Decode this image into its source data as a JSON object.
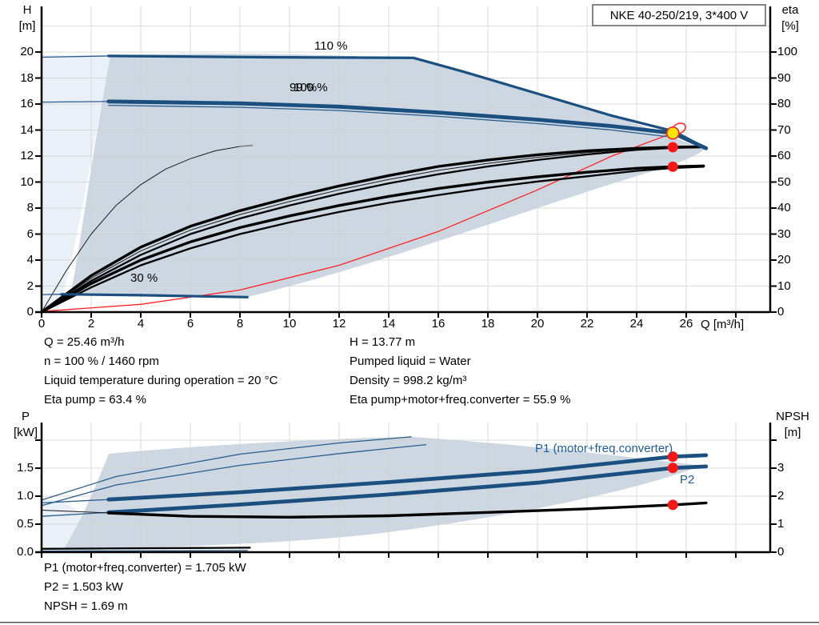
{
  "title_box": "NKE 40-250/219, 3*400 V",
  "top_chart": {
    "h_title_line1": "H",
    "h_title_line2": "[m]",
    "eta_title_line1": "eta",
    "eta_title_line2": "[%]",
    "q_axis_title": "Q [m³/h]",
    "label_110": "110 %",
    "label_100": "100 %",
    "label_99": "99 %",
    "label_30": "30 %",
    "h_ticks": [
      "20",
      "18",
      "16",
      "14",
      "12",
      "10",
      "8",
      "6",
      "4",
      "2",
      "0"
    ],
    "eta_ticks": [
      "100",
      "90",
      "80",
      "70",
      "60",
      "50",
      "40",
      "30",
      "20",
      "10",
      "0"
    ],
    "q_ticks": [
      "0",
      "2",
      "4",
      "6",
      "8",
      "10",
      "12",
      "14",
      "16",
      "18",
      "20",
      "22",
      "24",
      "26"
    ]
  },
  "bottom_chart": {
    "p_title_line1": "P",
    "p_title_line2": "[kW]",
    "npsh_title_line1": "NPSH",
    "npsh_title_line2": "[m]",
    "label_p1": "P1 (motor+freq.converter)",
    "label_p2": "P2",
    "p_ticks": [
      "1.5",
      "1.0",
      "0.5",
      "0.0"
    ],
    "npsh_ticks": [
      "3",
      "2",
      "1",
      "0"
    ]
  },
  "info_panel": {
    "left": [
      "Q = 25.46 m³/h",
      "n = 100 % / 1460 rpm",
      "Liquid temperature during operation = 20 °C",
      "Eta pump = 63.4 %"
    ],
    "right": [
      "H = 13.77 m",
      "Pumped liquid = Water",
      "Density = 998.2 kg/m³",
      "Eta pump+motor+freq.converter = 55.9 %"
    ]
  },
  "footer_panel": [
    "P1 (motor+freq.converter) = 1.705 kW",
    "P2 = 1.503 kW",
    "NPSH = 1.69 m"
  ],
  "colors": {
    "curve_blue": "#1a4f80",
    "label_blue": "#1d5c9e",
    "marker_red": "#ff1515",
    "duty_yellow": "#ffe400",
    "region_light": "#e9f0f7",
    "region_gray": "#ccd7e2"
  },
  "chart_data": {
    "top": {
      "type": "line",
      "title": "NKE 40-250/219, 3*400 V",
      "x_label": "Q [m³/h]",
      "y_left_label": "H [m]",
      "y_right_label": "eta [%]",
      "x_range": [
        0,
        29.4
      ],
      "y_left_range": [
        0,
        24
      ],
      "y_right_range": [
        0,
        120
      ],
      "grid": true,
      "series": {
        "h110_thin": {
          "axis": "H",
          "points": [
            [
              0,
              19.6
            ],
            [
              2.7,
              19.7
            ]
          ]
        },
        "h110": {
          "axis": "H",
          "points": [
            [
              2.7,
              19.7
            ],
            [
              9,
              19.6
            ],
            [
              15,
              19.55
            ],
            [
              17,
              18.5
            ],
            [
              20,
              16.8
            ],
            [
              23,
              15.1
            ],
            [
              25.5,
              13.9
            ],
            [
              26.8,
              12.6
            ]
          ]
        },
        "h100_thin": {
          "axis": "H",
          "points": [
            [
              0,
              16.15
            ],
            [
              2.7,
              16.2
            ]
          ]
        },
        "h100": {
          "axis": "H",
          "points": [
            [
              2.7,
              16.2
            ],
            [
              8,
              16.05
            ],
            [
              12,
              15.8
            ],
            [
              16,
              15.35
            ],
            [
              20,
              14.8
            ],
            [
              23,
              14.3
            ],
            [
              25.46,
              13.77
            ],
            [
              26.8,
              12.6
            ]
          ]
        },
        "h99_thin": {
          "axis": "H",
          "points": [
            [
              2.7,
              15.9
            ],
            [
              8,
              15.75
            ],
            [
              12,
              15.5
            ],
            [
              16,
              15.05
            ],
            [
              20,
              14.5
            ],
            [
              23,
              14.0
            ],
            [
              25.2,
              13.5
            ]
          ]
        },
        "h30_thin": {
          "axis": "H",
          "points": [
            [
              0,
              1.35
            ],
            [
              0.8,
              1.37
            ]
          ]
        },
        "h30": {
          "axis": "H",
          "points": [
            [
              0.8,
              1.37
            ],
            [
              4,
              1.3
            ],
            [
              8.3,
              1.15
            ]
          ]
        },
        "eta_110_thin": {
          "axis": "eta",
          "points": [
            [
              0,
              0
            ],
            [
              1,
              16
            ],
            [
              2,
              30
            ],
            [
              3,
              41
            ],
            [
              4,
              49
            ],
            [
              5,
              55
            ],
            [
              6,
              59
            ],
            [
              7,
              62
            ],
            [
              8,
              63.7
            ]
          ]
        },
        "eta_110_end": {
          "axis": "eta",
          "points": [
            [
              8,
              63.7
            ],
            [
              8.5,
              64.1
            ]
          ]
        },
        "eta_pump": {
          "axis": "eta",
          "points": [
            [
              0,
              0
            ],
            [
              2,
              14
            ],
            [
              4,
              25
            ],
            [
              6,
              33
            ],
            [
              8,
              39
            ],
            [
              10,
              44
            ],
            [
              12,
              48.5
            ],
            [
              14,
              52.5
            ],
            [
              16,
              56
            ],
            [
              18,
              58.5
            ],
            [
              20,
              60.5
            ],
            [
              22,
              62
            ],
            [
              24,
              63
            ],
            [
              25.46,
              63.4
            ],
            [
              26.7,
              63.6
            ]
          ]
        },
        "eta_pump_thin": {
          "axis": "eta",
          "points": [
            [
              0,
              0
            ],
            [
              2,
              13
            ],
            [
              4,
              23.5
            ],
            [
              6,
              31.5
            ],
            [
              8,
              37.5
            ],
            [
              10,
              42.5
            ],
            [
              12,
              47
            ],
            [
              14,
              51
            ],
            [
              16,
              54.5
            ],
            [
              18,
              57.2
            ],
            [
              20,
              59.5
            ],
            [
              22,
              61.3
            ],
            [
              24,
              62.7
            ],
            [
              25.46,
              63.2
            ],
            [
              26.7,
              63.5
            ]
          ]
        },
        "eta_pump_b": {
          "axis": "eta",
          "points": [
            [
              0,
              0
            ],
            [
              2,
              12
            ],
            [
              4,
              22
            ],
            [
              6,
              30
            ],
            [
              8,
              36
            ],
            [
              10,
              41
            ],
            [
              12,
              45.5
            ],
            [
              14,
              49.5
            ],
            [
              16,
              53
            ],
            [
              18,
              56
            ],
            [
              20,
              58.5
            ],
            [
              22,
              60.6
            ],
            [
              24,
              62.4
            ],
            [
              25.46,
              63.1
            ],
            [
              26.7,
              63.4
            ]
          ]
        },
        "eta_total": {
          "axis": "eta",
          "points": [
            [
              0,
              0
            ],
            [
              2,
              11
            ],
            [
              4,
              20
            ],
            [
              6,
              27
            ],
            [
              8,
              32.5
            ],
            [
              10,
              37
            ],
            [
              12,
              41
            ],
            [
              14,
              44.5
            ],
            [
              16,
              47.5
            ],
            [
              18,
              50
            ],
            [
              20,
              52
            ],
            [
              22,
              53.8
            ],
            [
              24,
              55.3
            ],
            [
              25.46,
              55.9
            ],
            [
              26.7,
              56.2
            ]
          ]
        },
        "eta_total_b": {
          "axis": "eta",
          "points": [
            [
              0,
              0
            ],
            [
              2,
              9.5
            ],
            [
              4,
              18
            ],
            [
              6,
              24.5
            ],
            [
              8,
              30
            ],
            [
              10,
              34.5
            ],
            [
              12,
              38.5
            ],
            [
              14,
              42
            ],
            [
              16,
              45
            ],
            [
              18,
              47.8
            ],
            [
              20,
              50.2
            ],
            [
              22,
              52.2
            ],
            [
              24,
              54.3
            ],
            [
              25.46,
              55.4
            ],
            [
              26.7,
              55.9
            ]
          ]
        },
        "qh_limit_red": {
          "axis": "H",
          "points": [
            [
              0,
              0.05
            ],
            [
              4,
              0.6
            ],
            [
              8,
              1.7
            ],
            [
              12,
              3.6
            ],
            [
              16,
              6.2
            ],
            [
              20,
              9.4
            ],
            [
              23,
              12
            ],
            [
              25.46,
              13.77
            ]
          ]
        }
      },
      "duty_point": {
        "q": 25.46,
        "h": 13.77,
        "eta_pump": 63.4,
        "eta_total": 55.9
      }
    },
    "bottom": {
      "type": "line",
      "x_label": "Q [m³/h]",
      "y_left_label": "P [kW]",
      "y_right_label": "NPSH [m]",
      "x_range": [
        0,
        29.4
      ],
      "y_left_range": [
        0,
        2.3
      ],
      "y_right_range": [
        0,
        4.6
      ],
      "grid": true,
      "series": {
        "p1_110_thin": {
          "axis": "P",
          "points": [
            [
              0,
              0.93
            ],
            [
              3,
              1.35
            ],
            [
              8,
              1.75
            ],
            [
              12,
              1.95
            ],
            [
              14.9,
              2.06
            ]
          ]
        },
        "p2_110_thin": {
          "axis": "P",
          "points": [
            [
              0,
              0.83
            ],
            [
              3,
              1.2
            ],
            [
              8,
              1.55
            ],
            [
              12,
              1.76
            ],
            [
              15.5,
              1.92
            ]
          ]
        },
        "p1_thin": {
          "axis": "P",
          "points": [
            [
              0,
              0.88
            ],
            [
              2.7,
              0.94
            ]
          ]
        },
        "p1": {
          "axis": "P",
          "points": [
            [
              2.7,
              0.94
            ],
            [
              8,
              1.07
            ],
            [
              14,
              1.25
            ],
            [
              20,
              1.45
            ],
            [
              25.46,
              1.705
            ],
            [
              26.8,
              1.73
            ]
          ]
        },
        "p2_thin": {
          "axis": "P",
          "points": [
            [
              0,
              0.64
            ],
            [
              2.7,
              0.71
            ]
          ]
        },
        "p2": {
          "axis": "P",
          "points": [
            [
              2.7,
              0.71
            ],
            [
              8,
              0.85
            ],
            [
              14,
              1.03
            ],
            [
              20,
              1.24
            ],
            [
              25.46,
              1.503
            ],
            [
              26.8,
              1.53
            ]
          ]
        },
        "npsh_thin": {
          "axis": "NPSH",
          "points": [
            [
              0,
              1.5
            ],
            [
              2.7,
              1.4
            ]
          ]
        },
        "npsh": {
          "axis": "NPSH",
          "points": [
            [
              2.7,
              1.4
            ],
            [
              6,
              1.28
            ],
            [
              10,
              1.25
            ],
            [
              14,
              1.3
            ],
            [
              18,
              1.42
            ],
            [
              22,
              1.55
            ],
            [
              25.46,
              1.69
            ],
            [
              26.8,
              1.76
            ]
          ]
        },
        "p30_black": {
          "axis": "P",
          "points": [
            [
              0,
              0.06
            ],
            [
              8.4,
              0.08
            ]
          ]
        },
        "p30_blue": {
          "axis": "P",
          "points": [
            [
              0,
              0.02
            ],
            [
              8.3,
              0.03
            ]
          ]
        }
      },
      "duty_point": {
        "q": 25.46,
        "p1": 1.705,
        "p2": 1.503,
        "npsh": 1.69
      }
    },
    "markers": {
      "duty": {
        "axis": "H",
        "q": 25.46,
        "value": 13.77
      },
      "eta_pump": {
        "axis": "eta",
        "q": 25.46,
        "value": 63.4
      },
      "eta_total": {
        "axis": "eta",
        "q": 25.46,
        "value": 55.9
      },
      "p1": {
        "axis": "P",
        "q": 25.46,
        "value": 1.705
      },
      "p2": {
        "axis": "P",
        "q": 25.46,
        "value": 1.503
      },
      "npsh": {
        "axis": "NPSH",
        "q": 25.46,
        "value": 1.69
      }
    }
  }
}
